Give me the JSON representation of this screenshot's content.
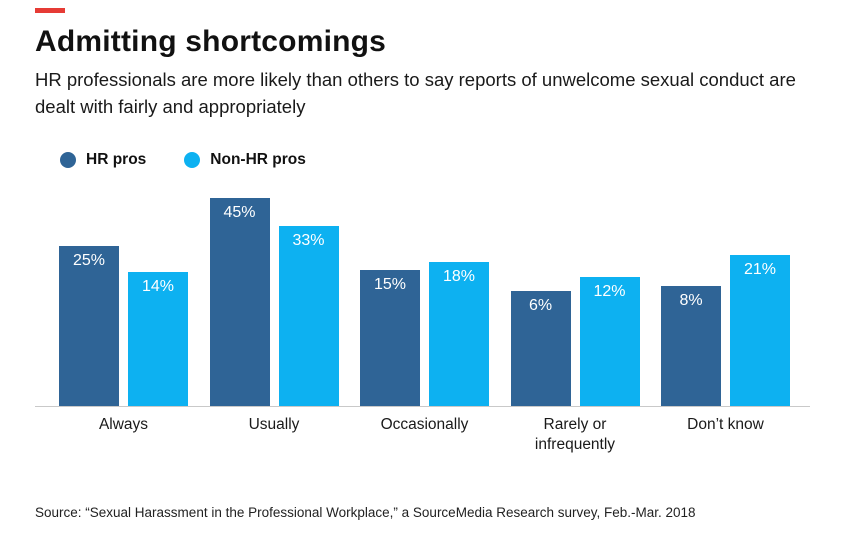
{
  "accent_color": "#e63b35",
  "title": "Admitting shortcomings",
  "subtitle": "HR professionals are more likely than others to say reports of unwelcome sexual conduct are dealt with fairly and appropriately",
  "source": "Source: “Sexual Harassment in the Professional Workplace,” a SourceMedia Research survey, Feb.-Mar. 2018",
  "chart_data": {
    "type": "bar",
    "title": "Admitting shortcomings",
    "categories": [
      "Always",
      "Usually",
      "Occasionally",
      "Rarely or infrequently",
      "Don’t know"
    ],
    "series": [
      {
        "name": "HR pros",
        "color": "#2f6496",
        "values": [
          25,
          45,
          15,
          6,
          8
        ]
      },
      {
        "name": "Non-HR pros",
        "color": "#0db1f1",
        "values": [
          14,
          33,
          18,
          12,
          21
        ]
      }
    ],
    "value_suffix": "%",
    "legend_position": "top-left",
    "grid": false,
    "value_labels": "inside-top"
  }
}
